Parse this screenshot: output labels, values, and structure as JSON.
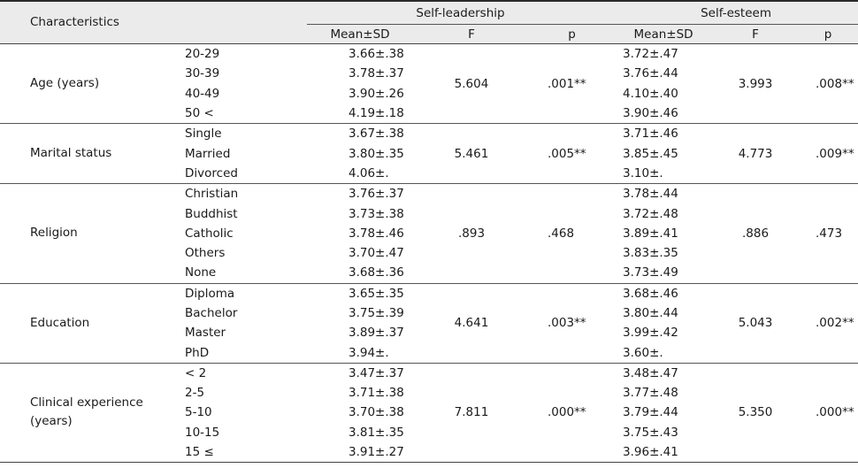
{
  "header": {
    "characteristics": "Characteristics",
    "self_leadership": "Self-leadership",
    "self_esteem": "Self-esteem",
    "mean_sd": "Mean±SD",
    "f": "F",
    "p": "p"
  },
  "groups": [
    {
      "label": "Age (years)",
      "rows": [
        {
          "sub": "20-29",
          "sl": "3.66±.38",
          "se": "3.72±.47"
        },
        {
          "sub": "30-39",
          "sl": "3.78±.37",
          "se": "3.76±.44"
        },
        {
          "sub": "40-49",
          "sl": "3.90±.26",
          "se": "4.10±.40"
        },
        {
          "sub": "50 <",
          "sl": "4.19±.18",
          "se": "3.90±.46"
        }
      ],
      "sl_f": "5.604",
      "sl_p": ".001**",
      "se_f": "3.993",
      "se_p": ".008**"
    },
    {
      "label": "Marital status",
      "rows": [
        {
          "sub": "Single",
          "sl": "3.67±.38",
          "se": "3.71±.46"
        },
        {
          "sub": "Married",
          "sl": "3.80±.35",
          "se": "3.85±.45"
        },
        {
          "sub": "Divorced",
          "sl": "4.06±.",
          "se": "3.10±."
        }
      ],
      "sl_f": "5.461",
      "sl_p": ".005**",
      "se_f": "4.773",
      "se_p": ".009**"
    },
    {
      "label": "Religion",
      "rows": [
        {
          "sub": "Christian",
          "sl": "3.76±.37",
          "se": "3.78±.44"
        },
        {
          "sub": "Buddhist",
          "sl": "3.73±.38",
          "se": "3.72±.48"
        },
        {
          "sub": "Catholic",
          "sl": "3.78±.46",
          "se": "3.89±.41"
        },
        {
          "sub": "Others",
          "sl": "3.70±.47",
          "se": "3.83±.35"
        },
        {
          "sub": "None",
          "sl": "3.68±.36",
          "se": "3.73±.49"
        }
      ],
      "sl_f": ".893",
      "sl_p": ".468",
      "se_f": ".886",
      "se_p": ".473"
    },
    {
      "label": "Education",
      "rows": [
        {
          "sub": "Diploma",
          "sl": "3.65±.35",
          "se": "3.68±.46"
        },
        {
          "sub": "Bachelor",
          "sl": "3.75±.39",
          "se": "3.80±.44"
        },
        {
          "sub": "Master",
          "sl": "3.89±.37",
          "se": "3.99±.42"
        },
        {
          "sub": "PhD",
          "sl": "3.94±.",
          "se": "3.60±."
        }
      ],
      "sl_f": "4.641",
      "sl_p": ".003**",
      "se_f": "5.043",
      "se_p": ".002**"
    },
    {
      "label": "Clinical experience\n(years)",
      "rows": [
        {
          "sub": "< 2",
          "sl": "3.47±.37",
          "se": "3.48±.47"
        },
        {
          "sub": "2-5",
          "sl": "3.71±.38",
          "se": "3.77±.48"
        },
        {
          "sub": "5-10",
          "sl": "3.70±.38",
          "se": "3.79±.44"
        },
        {
          "sub": "10-15",
          "sl": "3.81±.35",
          "se": "3.75±.43"
        },
        {
          "sub": "15 ≤",
          "sl": "3.91±.27",
          "se": "3.96±.41"
        }
      ],
      "sl_f": "7.811",
      "sl_p": ".000**",
      "se_f": "5.350",
      "se_p": ".000**"
    }
  ]
}
